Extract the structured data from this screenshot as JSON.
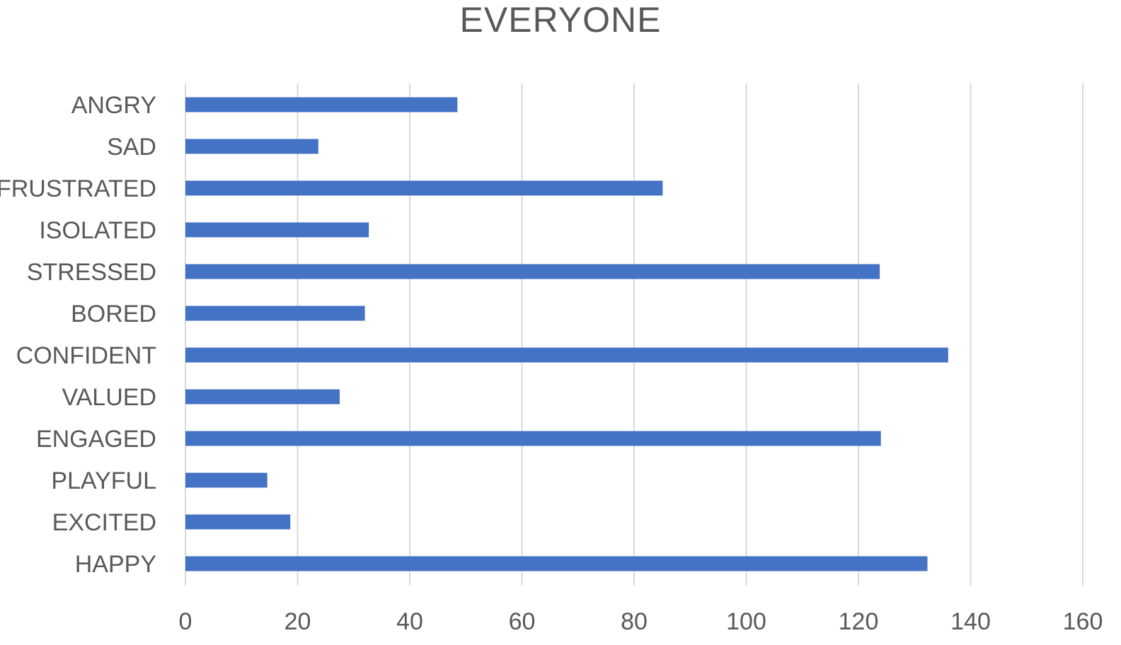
{
  "chart_data": {
    "type": "bar",
    "orientation": "horizontal",
    "title": "EVERYONE",
    "xlabel": "",
    "ylabel": "",
    "categories": [
      "ANGRY",
      "SAD",
      "FRUSTRATED",
      "ISOLATED",
      "STRESSED",
      "BORED",
      "CONFIDENT",
      "VALUED",
      "ENGAGED",
      "PLAYFUL",
      "EXCITED",
      "HAPPY"
    ],
    "values": [
      48.5,
      23.7,
      85.1,
      32.7,
      123.8,
      32,
      136,
      27.5,
      124,
      14.6,
      18.7,
      132.3
    ],
    "xlim": [
      0,
      160
    ],
    "xticks": [
      "0",
      "20",
      "40",
      "60",
      "80",
      "100",
      "120",
      "140",
      "160"
    ],
    "grid": "vertical",
    "legend": "none",
    "colors": {
      "bar": "#4472c4",
      "grid": "#d9d9d9",
      "text": "#595959"
    }
  }
}
